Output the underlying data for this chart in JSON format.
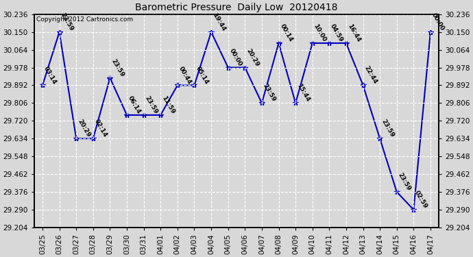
{
  "title": "Barometric Pressure  Daily Low  20120418",
  "copyright": "Copyright 2012 Cartronics.com",
  "x_labels": [
    "03/25",
    "03/26",
    "03/27",
    "03/28",
    "03/29",
    "03/30",
    "03/31",
    "04/01",
    "04/02",
    "04/03",
    "04/04",
    "04/05",
    "04/06",
    "04/07",
    "04/08",
    "04/09",
    "04/10",
    "04/11",
    "04/12",
    "04/13",
    "04/14",
    "04/15",
    "04/16",
    "04/17"
  ],
  "y_values": [
    29.892,
    30.15,
    29.634,
    29.634,
    29.928,
    29.748,
    29.748,
    29.748,
    29.892,
    29.892,
    30.15,
    29.978,
    29.978,
    29.806,
    30.096,
    29.806,
    30.096,
    30.096,
    30.096,
    29.892,
    29.634,
    29.376,
    29.29,
    30.15
  ],
  "point_labels": [
    "03:14",
    "23:59",
    "20:29",
    "02:14",
    "23:59",
    "06:14",
    "23:59",
    "11:59",
    "00:44",
    "05:14",
    "19:44",
    "00:00",
    "20:29",
    "23:59",
    "00:14",
    "15:44",
    "10:00",
    "04:59",
    "16:44",
    "22:44",
    "23:59",
    "23:59",
    "02:59",
    "00:00"
  ],
  "line_color": "#0000bb",
  "marker_color": "#0000bb",
  "bg_color": "#d8d8d8",
  "plot_bg_color": "#d8d8d8",
  "grid_color": "#ffffff",
  "ylim_min": 29.204,
  "ylim_max": 30.236,
  "yticks": [
    29.204,
    29.29,
    29.376,
    29.462,
    29.548,
    29.634,
    29.72,
    29.806,
    29.892,
    29.978,
    30.064,
    30.15,
    30.236
  ]
}
